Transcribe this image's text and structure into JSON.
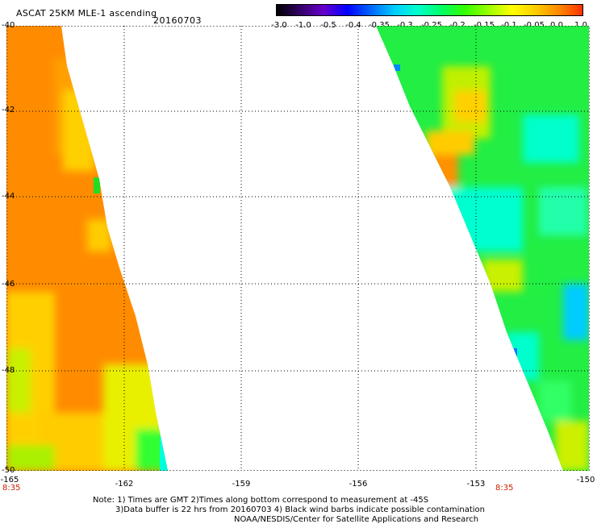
{
  "header": {
    "title": "ASCAT 25KM MLE-1 ascending",
    "date": "20160703"
  },
  "colorbar": {
    "labels": [
      "-3.0",
      "-1.0",
      "-0.5",
      "-0.4",
      "-0.35",
      "-0.3",
      "-0.25",
      "-0.2",
      "-0.15",
      "-0.1",
      "-0.05",
      "0.0",
      "1.0"
    ],
    "colors": [
      "#000000",
      "#330066",
      "#6600cc",
      "#0000ff",
      "#0066ff",
      "#00ccff",
      "#00ffcc",
      "#00ff66",
      "#33ff00",
      "#99ff00",
      "#ffff00",
      "#ffcc00",
      "#ff8800",
      "#ff3300"
    ]
  },
  "map": {
    "lat_labels": [
      "-40",
      "-42",
      "-44",
      "-46",
      "-48",
      "-50"
    ],
    "lon_labels": [
      "-165",
      "-162",
      "-159",
      "-156",
      "-153",
      "-150"
    ],
    "time_labels": [
      "8:35",
      "8:35"
    ]
  },
  "notes": {
    "line1": "Note: 1) Times are GMT 2)Times along bottom correspond to measurement at -45S",
    "line2": "3)Data buffer is 22 hrs from 20160703 4) Black wind barbs indicate possible contamination",
    "line3": "NOAA/NESDIS/Center for Satellite Applications and Research"
  }
}
